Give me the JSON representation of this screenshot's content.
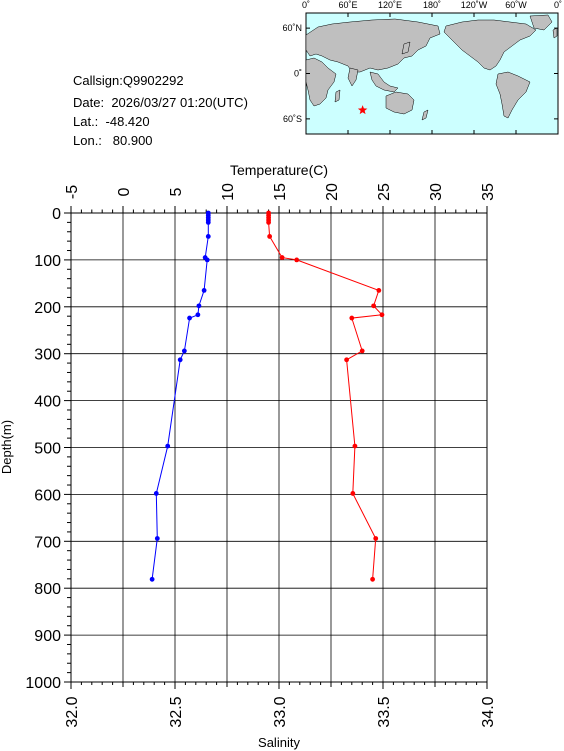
{
  "info": {
    "callsign_label": "Callsign:",
    "callsign": "Q9902292",
    "date_label": "Date:",
    "date": "2026/03/27 01:20(UTC)",
    "lat_label": "Lat.:",
    "lat": "-48.420",
    "lon_label": "Lon.:",
    "lon": "80.900"
  },
  "map": {
    "lon_labels": [
      "0˚",
      "60˚E",
      "120˚E",
      "180˚",
      "120˚W",
      "60˚W",
      "0˚"
    ],
    "lat_labels": [
      "60˚N",
      "0˚",
      "60˚S"
    ],
    "marker_lat": -48.42,
    "marker_lon": 80.9,
    "ocean_color": "#ccffff",
    "land_color": "#bfbfbf",
    "marker_color": "#ff0000"
  },
  "chart_data": {
    "type": "line",
    "depth_axis": {
      "label": "Depth(m)",
      "range": [
        0,
        1000
      ],
      "reversed": true,
      "ticks": [
        "0",
        "100",
        "200",
        "300",
        "400",
        "500",
        "600",
        "700",
        "800",
        "900",
        "1000"
      ]
    },
    "top_axis": {
      "label": "Temperature(C)",
      "range": [
        -5,
        35
      ],
      "ticks": [
        "-5",
        "0",
        "5",
        "10",
        "15",
        "20",
        "25",
        "30",
        "35"
      ]
    },
    "bottom_axis": {
      "label": "Salinity",
      "range": [
        32.0,
        34.0
      ],
      "ticks": [
        "32.0",
        "32.5",
        "33.0",
        "33.5",
        "34.0"
      ]
    },
    "grid": true,
    "series": [
      {
        "variable": "temperature",
        "color": "#ff0000",
        "points": [
          [
            14.0,
            0
          ],
          [
            14.0,
            5
          ],
          [
            14.0,
            10
          ],
          [
            14.0,
            15
          ],
          [
            14.0,
            20
          ],
          [
            14.1,
            50
          ],
          [
            15.3,
            95
          ],
          [
            16.7,
            100
          ],
          [
            24.6,
            165
          ],
          [
            24.1,
            198
          ],
          [
            24.9,
            217
          ],
          [
            22.0,
            224
          ],
          [
            23.0,
            294
          ],
          [
            21.5,
            313
          ],
          [
            22.3,
            497
          ],
          [
            22.1,
            598
          ],
          [
            24.3,
            694
          ],
          [
            24.0,
            781
          ]
        ]
      },
      {
        "variable": "salinity",
        "color": "#0000ff",
        "points": [
          [
            32.66,
            0
          ],
          [
            32.66,
            5
          ],
          [
            32.66,
            10
          ],
          [
            32.66,
            15
          ],
          [
            32.66,
            20
          ],
          [
            32.66,
            50
          ],
          [
            32.645,
            95
          ],
          [
            32.655,
            100
          ],
          [
            32.64,
            165
          ],
          [
            32.615,
            198
          ],
          [
            32.61,
            217
          ],
          [
            32.57,
            224
          ],
          [
            32.545,
            294
          ],
          [
            32.525,
            313
          ],
          [
            32.465,
            497
          ],
          [
            32.41,
            598
          ],
          [
            32.415,
            694
          ],
          [
            32.39,
            781
          ]
        ]
      }
    ]
  }
}
